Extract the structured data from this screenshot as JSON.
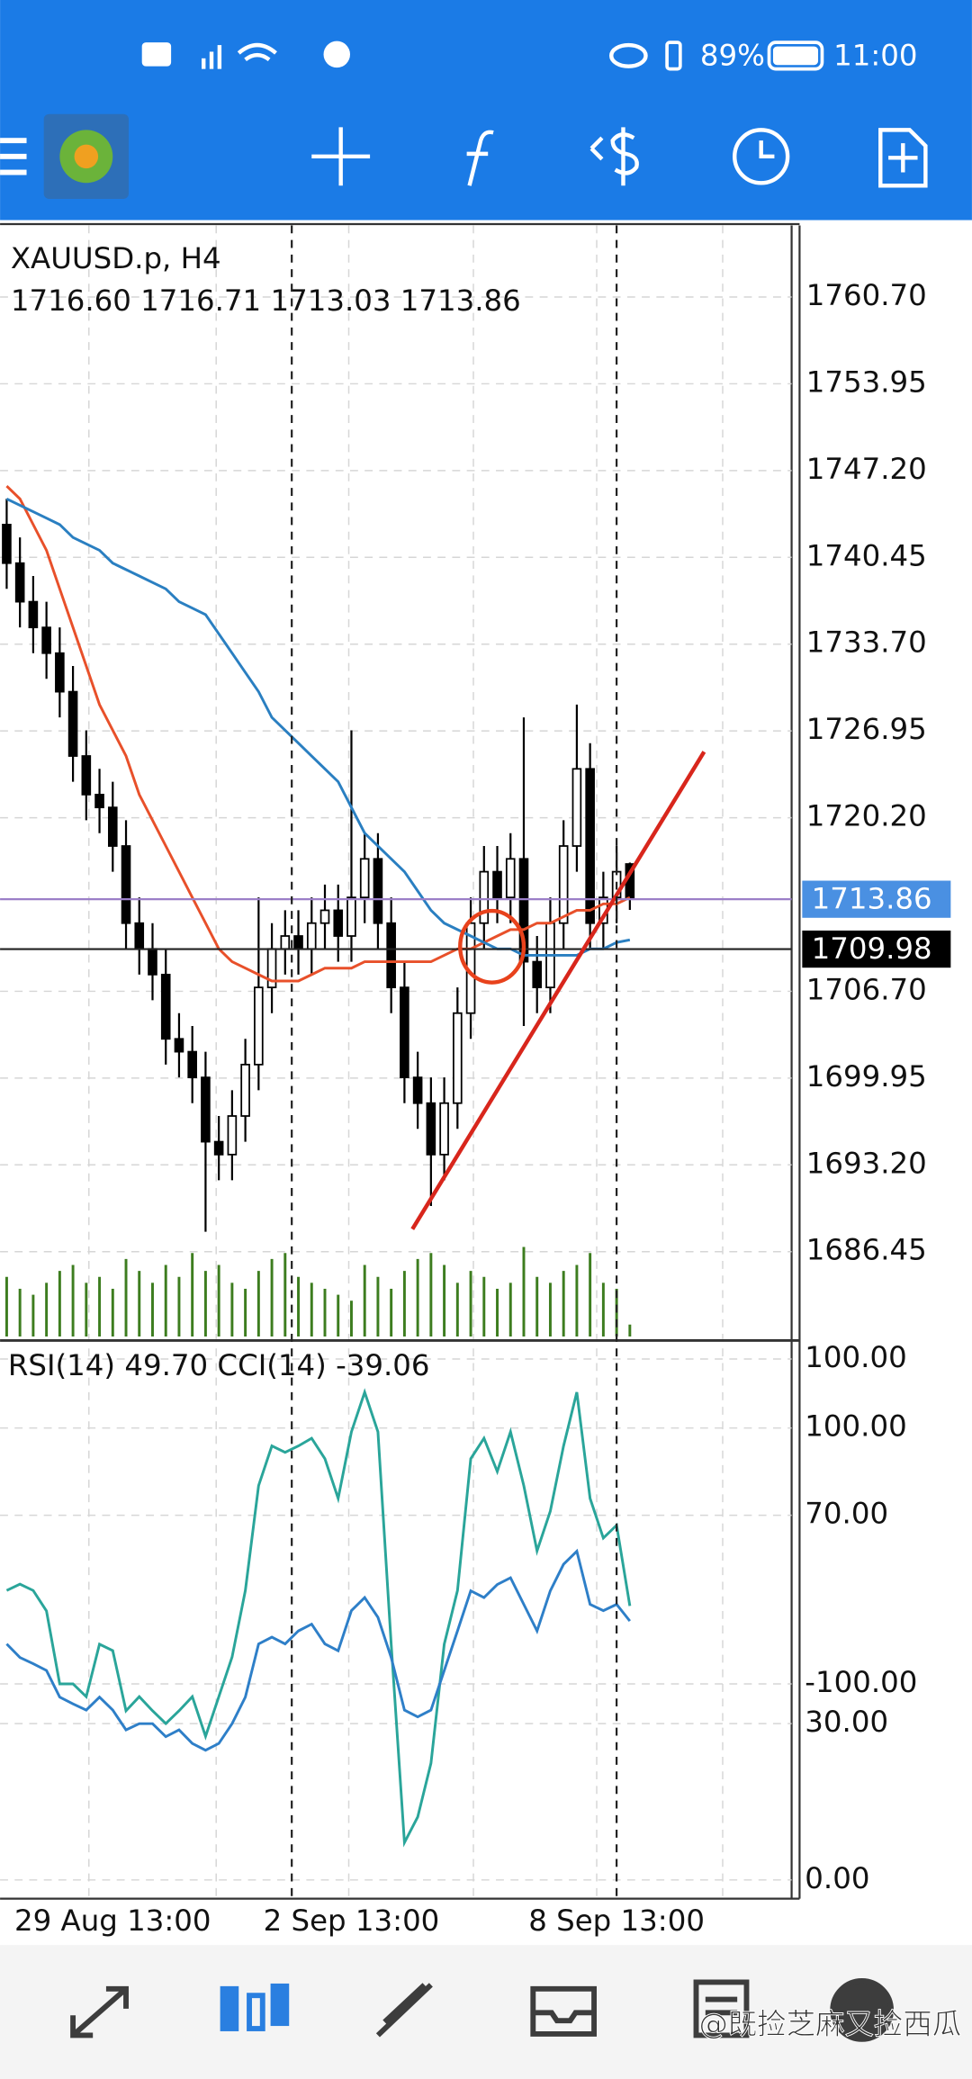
{
  "status_bar": {
    "time": "11:00",
    "battery": "89%"
  },
  "watermark": "@既捡芝麻又捡西瓜",
  "chart_data": [
    {
      "type": "candlestick",
      "title": "XAUUSD.p, H4",
      "subtitle": "1716.60 1716.71 1713.03 1713.86",
      "categories": [
        null,
        null,
        null,
        null,
        null,
        null,
        null,
        null,
        "29 Aug 13:00",
        null,
        null,
        null,
        null,
        null,
        null,
        null,
        null,
        null,
        null,
        null,
        null,
        null,
        null,
        null,
        null,
        null,
        "2 Sep 13:00",
        null,
        null,
        null,
        null,
        null,
        null,
        null,
        null,
        null,
        null,
        null,
        null,
        null,
        null,
        null,
        null,
        null,
        null,
        null,
        "8 Sep 13:00",
        null
      ],
      "open": [
        1743,
        1740,
        1737,
        1735,
        1733,
        1730,
        1725,
        1722,
        1721,
        1718,
        1712,
        1710,
        1708,
        1703,
        1702,
        1700,
        1695,
        1694,
        1697,
        1701,
        1707,
        1710,
        1711,
        1710,
        1712,
        1713,
        1711,
        1714,
        1717,
        1712,
        1707,
        1700,
        1698,
        1694,
        1698,
        1705,
        1712,
        1716,
        1714,
        1717,
        1709,
        1707,
        1712,
        1718,
        1724,
        1712,
        1714,
        1716.6
      ],
      "high": [
        1745,
        1742,
        1739,
        1737,
        1735,
        1732,
        1727,
        1724,
        1723,
        1720,
        1714,
        1712,
        1710,
        1705,
        1704,
        1702,
        1697,
        1699,
        1703,
        1714,
        1712,
        1713,
        1713,
        1714,
        1715,
        1715,
        1727,
        1719,
        1719,
        1714,
        1709,
        1702,
        1700,
        1700,
        1707,
        1714,
        1718,
        1718,
        1719,
        1728,
        1711,
        1714,
        1720,
        1729,
        1726,
        1716,
        1718,
        1716.71
      ],
      "low": [
        1738,
        1735,
        1733,
        1731,
        1728,
        1723,
        1720,
        1719,
        1716,
        1710,
        1708,
        1706,
        1701,
        1700,
        1698,
        1688,
        1692,
        1692,
        1695,
        1699,
        1705,
        1708,
        1708,
        1708,
        1710,
        1709,
        1709,
        1712,
        1710,
        1705,
        1698,
        1696,
        1690,
        1692,
        1696,
        1703,
        1710,
        1712,
        1712,
        1704,
        1705,
        1705,
        1710,
        1716,
        1710,
        1710,
        1712,
        1713.03
      ],
      "close": [
        1740,
        1737,
        1735,
        1733,
        1730,
        1725,
        1722,
        1721,
        1718,
        1712,
        1710,
        1708,
        1703,
        1702,
        1700,
        1695,
        1694,
        1697,
        1701,
        1707,
        1710,
        1711,
        1710,
        1712,
        1713,
        1711,
        1714,
        1717,
        1712,
        1707,
        1700,
        1698,
        1694,
        1698,
        1705,
        1712,
        1716,
        1714,
        1717,
        1709,
        1707,
        1712,
        1718,
        1724,
        1712,
        1714,
        1716,
        1713.86
      ],
      "overlays": [
        {
          "color": "#e8502a",
          "values": [
            1746,
            1745,
            1743,
            1741,
            1738,
            1735,
            1732,
            1729,
            1727,
            1725,
            1722,
            1720,
            1718,
            1716,
            1714,
            1712,
            1710,
            1709,
            1708.5,
            1708,
            1707.5,
            1707.5,
            1707.5,
            1708,
            1708.5,
            1708.5,
            1708.5,
            1709,
            1709,
            1709,
            1709,
            1709,
            1709,
            1709.5,
            1710,
            1710,
            1710.5,
            1711,
            1711.5,
            1711.5,
            1712,
            1712,
            1712.5,
            1713,
            1713,
            1713.5,
            1713.5,
            1714
          ]
        },
        {
          "color": "#2a7fc1",
          "values": [
            1745,
            1744.5,
            1744,
            1743.5,
            1743,
            1742,
            1741.5,
            1741,
            1740,
            1739.5,
            1739,
            1738.5,
            1738,
            1737,
            1736.5,
            1736,
            1734.5,
            1733,
            1731.5,
            1730,
            1728,
            1727,
            1726,
            1725,
            1724,
            1723,
            1721,
            1719,
            1718,
            1717,
            1716,
            1714.5,
            1713,
            1712,
            1711.5,
            1711,
            1710.5,
            1710,
            1710,
            1709.5,
            1709.5,
            1709.5,
            1709.5,
            1709.5,
            1710,
            1710,
            1710.5,
            1710.7
          ]
        }
      ],
      "volumes": [
        50,
        40,
        35,
        45,
        55,
        60,
        45,
        50,
        40,
        65,
        55,
        45,
        60,
        50,
        70,
        55,
        60,
        45,
        40,
        55,
        65,
        70,
        50,
        45,
        40,
        35,
        30,
        60,
        50,
        40,
        55,
        65,
        70,
        60,
        45,
        55,
        50,
        40,
        45,
        75,
        50,
        45,
        55,
        60,
        70,
        45,
        40,
        10
      ],
      "volume_color": "#3d7d1f",
      "volume_ylim": [
        0,
        100
      ],
      "ylim": [
        1679.85,
        1766.27
      ],
      "yticks": [
        {
          "value": 1760.7,
          "label": "1760.70"
        },
        {
          "value": 1753.95,
          "label": "1753.95"
        },
        {
          "value": 1747.2,
          "label": "1747.20"
        },
        {
          "value": 1740.45,
          "label": "1740.45"
        },
        {
          "value": 1733.7,
          "label": "1733.70"
        },
        {
          "value": 1726.95,
          "label": "1726.95"
        },
        {
          "value": 1720.2,
          "label": "1720.20"
        },
        {
          "value": 1706.7,
          "label": "1706.70"
        },
        {
          "value": 1699.95,
          "label": "1699.95"
        },
        {
          "value": 1693.2,
          "label": "1693.20"
        },
        {
          "value": 1686.45,
          "label": "1686.45"
        }
      ],
      "price_lines": [
        {
          "value": 1713.86,
          "label": "1713.86",
          "color": "#9b7fc8",
          "box": "#4a90e2"
        },
        {
          "value": 1709.98,
          "label": "1709.98",
          "color": "#222222",
          "box": "#000000"
        }
      ],
      "grid": true
    },
    {
      "type": "line",
      "title": "RSI(14) 49.70 CCI(14) -39.06",
      "series": [
        {
          "color": "#2aa59a",
          "axis": "y2",
          "values": [
            -27,
            -22,
            -27,
            -43,
            -100,
            -100,
            -110,
            -69,
            -74,
            -121,
            -110,
            -121,
            -131,
            -121,
            -110,
            -141,
            -110,
            -79,
            -27,
            55,
            86,
            81,
            86,
            92,
            76,
            45,
            97,
            128,
            97,
            -69,
            -224,
            -204,
            -162,
            -69,
            -27,
            76,
            92,
            66,
            97,
            55,
            4,
            35,
            86,
            128,
            45,
            14,
            24,
            -39.06
          ]
        },
        {
          "color": "#2e7fc8",
          "values": [
            45.3,
            42.7,
            41.5,
            40.2,
            35.1,
            33.8,
            32.6,
            35.1,
            32.6,
            28.8,
            30.0,
            30.0,
            27.5,
            28.8,
            26.2,
            24.9,
            26.2,
            30.0,
            35.1,
            45.3,
            46.6,
            45.3,
            47.8,
            49.1,
            45.3,
            44.0,
            51.7,
            54.2,
            50.4,
            42.7,
            32.6,
            31.3,
            32.6,
            40.2,
            47.8,
            55.5,
            54.2,
            56.7,
            58.0,
            52.9,
            47.8,
            55.5,
            60.6,
            63.1,
            52.9,
            51.7,
            52.9,
            49.7
          ]
        }
      ],
      "ylim": [
        -3.6,
        103.3
      ],
      "yticks": [
        {
          "value": 100,
          "label": "100.00"
        },
        {
          "value": 70,
          "label": "70.00"
        },
        {
          "value": 30,
          "label": "30.00"
        },
        {
          "value": 0,
          "label": "0.00"
        }
      ],
      "y2lim": [
        -267.9,
        167.4
      ],
      "y2ticks": [
        {
          "value": 100,
          "label": "100.00"
        },
        {
          "value": -100,
          "label": "-100.00"
        }
      ],
      "grid": true
    }
  ]
}
